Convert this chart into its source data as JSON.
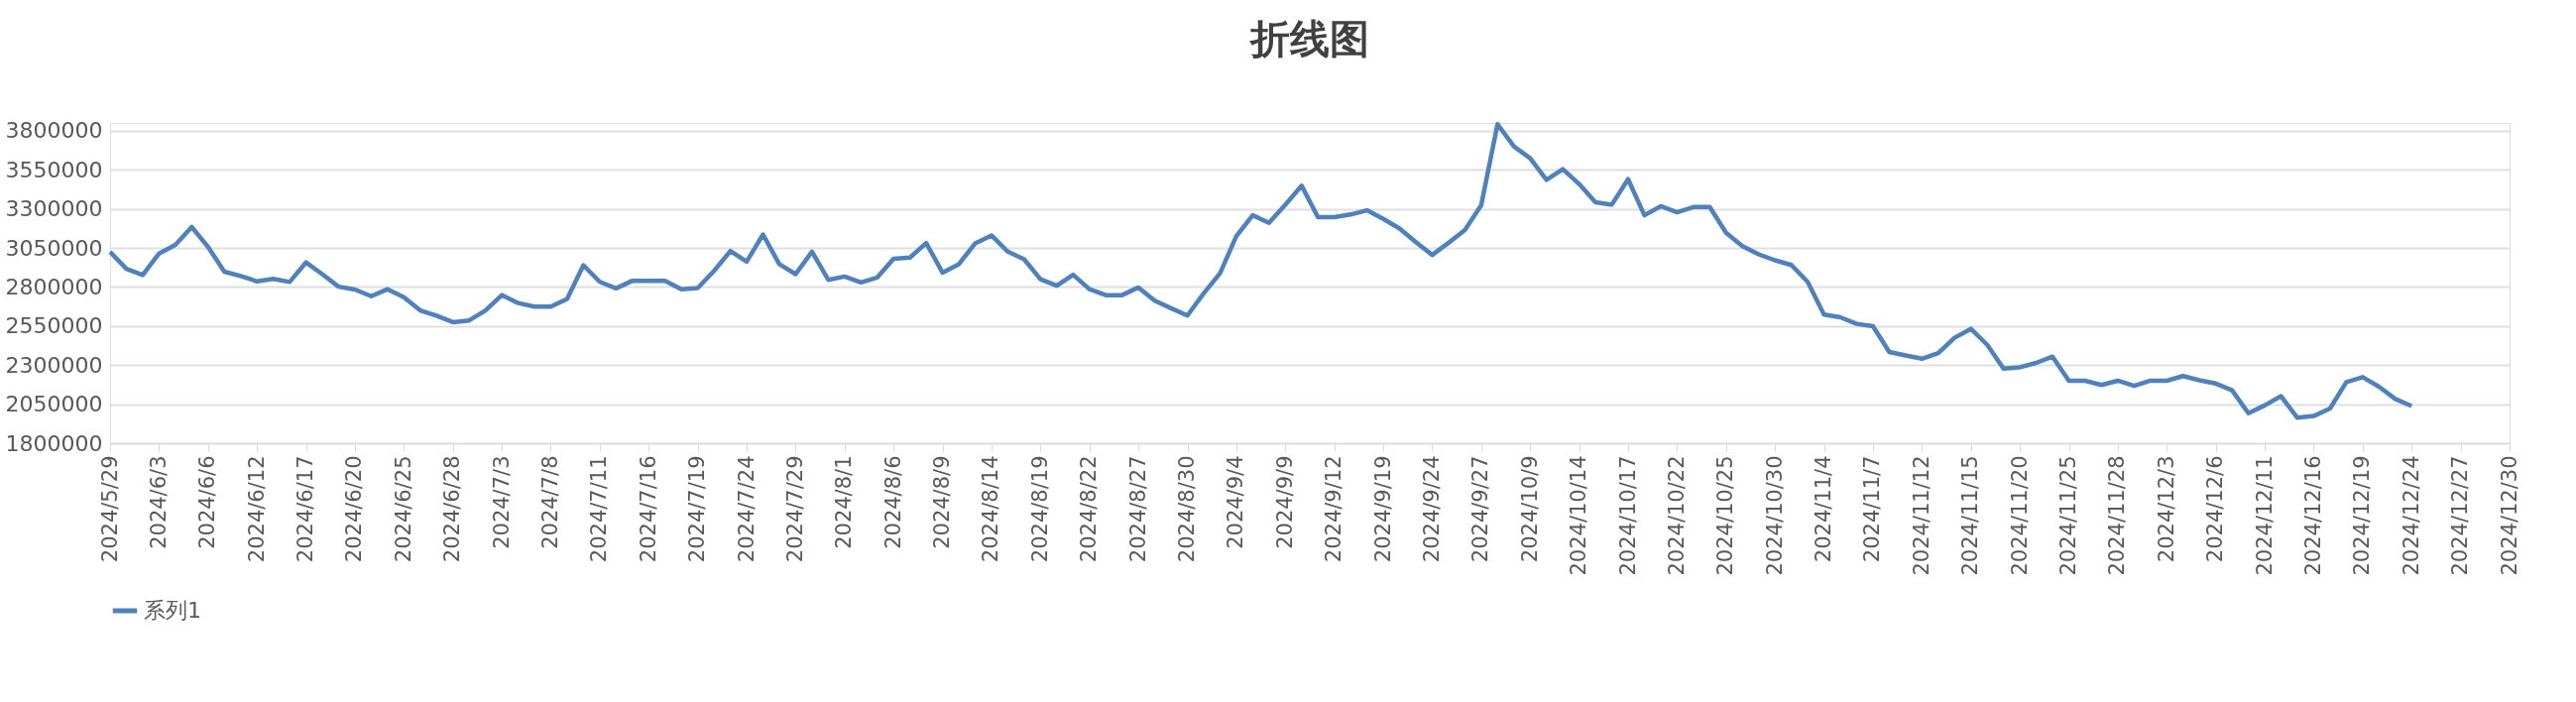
{
  "chart_data": {
    "type": "line",
    "title": "折线图",
    "categories": [
      "2024/5/29",
      null,
      null,
      "2024/6/3",
      null,
      null,
      "2024/6/6",
      null,
      null,
      "2024/6/12",
      null,
      null,
      "2024/6/17",
      null,
      null,
      "2024/6/20",
      null,
      null,
      "2024/6/25",
      null,
      null,
      "2024/6/28",
      null,
      null,
      "2024/7/3",
      null,
      null,
      "2024/7/8",
      null,
      null,
      "2024/7/11",
      null,
      null,
      "2024/7/16",
      null,
      null,
      "2024/7/19",
      null,
      null,
      "2024/7/24",
      null,
      null,
      "2024/7/29",
      null,
      null,
      "2024/8/1",
      null,
      null,
      "2024/8/6",
      null,
      null,
      "2024/8/9",
      null,
      null,
      "2024/8/14",
      null,
      null,
      "2024/8/19",
      null,
      null,
      "2024/8/22",
      null,
      null,
      "2024/8/27",
      null,
      null,
      "2024/8/30",
      null,
      null,
      "2024/9/4",
      null,
      null,
      "2024/9/9",
      null,
      null,
      "2024/9/12",
      null,
      null,
      "2024/9/19",
      null,
      null,
      "2024/9/24",
      null,
      null,
      "2024/9/27",
      null,
      null,
      "2024/10/9",
      null,
      null,
      "2024/10/14",
      null,
      null,
      "2024/10/17",
      null,
      null,
      "2024/10/22",
      null,
      null,
      "2024/10/25",
      null,
      null,
      "2024/10/30",
      null,
      null,
      "2024/11/4",
      null,
      null,
      "2024/11/7",
      null,
      null,
      "2024/11/12",
      null,
      null,
      "2024/11/15",
      null,
      null,
      "2024/11/20",
      null,
      null,
      "2024/11/25",
      null,
      null,
      "2024/11/28",
      null,
      null,
      "2024/12/3",
      null,
      null,
      "2024/12/6",
      null,
      null,
      "2024/12/11",
      null,
      null,
      "2024/12/16",
      null,
      null,
      "2024/12/19",
      null,
      null,
      "2024/12/24",
      null,
      null,
      "2024/12/27",
      null,
      null,
      "2024/12/30"
    ],
    "series": [
      {
        "name": "系列1",
        "color": "#4f81bd",
        "values": [
          3025000,
          2916000,
          2877000,
          3014000,
          3070000,
          3184000,
          3057000,
          2898000,
          2870000,
          2836000,
          2852000,
          2832000,
          2957000,
          2882000,
          2802000,
          2784000,
          2741000,
          2786000,
          2734000,
          2650000,
          2616000,
          2575000,
          2586000,
          2650000,
          2748000,
          2697000,
          2674000,
          2674000,
          2723000,
          2939000,
          2833000,
          2791000,
          2840000,
          2840000,
          2840000,
          2786000,
          2793000,
          2903000,
          3030000,
          2962000,
          3136000,
          2946000,
          2882000,
          3026000,
          2846000,
          2867000,
          2829000,
          2861000,
          2981000,
          2988000,
          3081000,
          2892000,
          2946000,
          3079000,
          3130000,
          3026000,
          2977000,
          2850000,
          2808000,
          2878000,
          2786000,
          2748000,
          2748000,
          2797000,
          2712000,
          2664000,
          2617000,
          2759000,
          2888000,
          3126000,
          3259000,
          3211000,
          3327000,
          3448000,
          3247000,
          3247000,
          3264000,
          3291000,
          3236000,
          3174000,
          3087000,
          3005000,
          3083000,
          3164000,
          3323000,
          3842000,
          3700000,
          3624000,
          3486000,
          3554000,
          3459000,
          3342000,
          3327000,
          3490000,
          3259000,
          3317000,
          3278000,
          3312000,
          3312000,
          3147000,
          3062000,
          3009000,
          2971000,
          2941000,
          2833000,
          2623000,
          2606000,
          2564000,
          2549000,
          2384000,
          2362000,
          2341000,
          2377000,
          2475000,
          2532000,
          2430000,
          2277000,
          2286000,
          2314000,
          2354000,
          2200000,
          2200000,
          2173000,
          2200000,
          2167000,
          2200000,
          2200000,
          2230000,
          2203000,
          2182000,
          2139000,
          1992000,
          2042000,
          2101000,
          1963000,
          1974000,
          2022000,
          2191000,
          2223000,
          2162000,
          2083000,
          2038000,
          null,
          null,
          null,
          null,
          null,
          null
        ]
      }
    ],
    "ylim": [
      1800000,
      3850000
    ],
    "yticks": [
      1800000,
      2050000,
      2300000,
      2550000,
      2800000,
      3050000,
      3300000,
      3550000,
      3800000
    ],
    "grid": "y",
    "legend": "bottom",
    "marker": "none",
    "line_style": "solid"
  }
}
